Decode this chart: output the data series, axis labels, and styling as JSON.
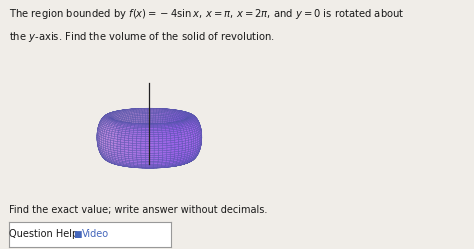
{
  "title_line1": "The region bounded by $f(x) = -4\\sin x,\\, x = \\pi,\\, x = 2\\pi$, and $y = 0$ is rotated about",
  "title_line2": "the $y$-axis. Find the volume of the solid of revolution.",
  "find_label": "Find the exact value; write answer without decimals.",
  "question_help": "Question Help:",
  "video_label": "Video",
  "bg_color": "#f0ede8",
  "text_color": "#1a1a1a",
  "box_color": "#ffffff",
  "box_edge_color": "#999999",
  "R": 2.2,
  "r": 0.55,
  "elev": 12,
  "azim": -55
}
